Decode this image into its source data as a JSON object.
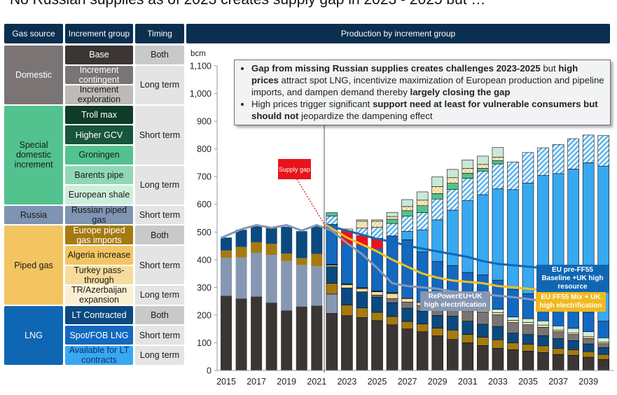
{
  "title": "No Russian supplies as of 2023 creates supply gap in 2023 - 2025 but …",
  "table": {
    "headers": {
      "gas_source": "Gas source",
      "increment_group": "Increment group",
      "timing": "Timing",
      "production": "Production by increment group"
    },
    "sources": [
      {
        "label": "Domestic",
        "color": "#7a7574",
        "text": "#ffffff"
      },
      {
        "label": "Special domestic increment",
        "color": "#52c28f",
        "text": "#1a1a1a"
      },
      {
        "label": "Russia",
        "color": "#7f94b2",
        "text": "#1a1a1a"
      },
      {
        "label": "Piped gas",
        "color": "#f2c561",
        "text": "#1a1a1a"
      },
      {
        "label": "LNG",
        "color": "#0f67b3",
        "text": "#ffffff"
      }
    ],
    "groups": [
      {
        "label": "Base",
        "color": "#3b3634",
        "text": "#ffffff"
      },
      {
        "label": "Increment contingent",
        "color": "#7a7574",
        "text": "#ffffff"
      },
      {
        "label": "Increment exploration",
        "color": "#bdbab8",
        "text": "#1a1a1a"
      },
      {
        "label": "Troll max",
        "color": "#0f3b2a",
        "text": "#ffffff"
      },
      {
        "label": "Higher GCV",
        "color": "#17563c",
        "text": "#ffffff"
      },
      {
        "label": "Groningen",
        "color": "#52c28f",
        "text": "#1a1a1a"
      },
      {
        "label": "Barents pipe",
        "color": "#8fd8b5",
        "text": "#1a1a1a"
      },
      {
        "label": "European shale",
        "color": "#cdeedd",
        "text": "#1a1a1a"
      },
      {
        "label": "Russian piped gas",
        "color": "#7f94b2",
        "text": "#1a1a1a"
      },
      {
        "label": "Europe piped gas imports",
        "color": "#a57a10",
        "text": "#ffffff"
      },
      {
        "label": "Algeria increase",
        "color": "#f2c561",
        "text": "#1a1a1a"
      },
      {
        "label": "Turkey pass-through",
        "color": "#f5dc9c",
        "text": "#1a1a1a"
      },
      {
        "label": "TR/Azerbaijan expansion",
        "color": "#fbefd2",
        "text": "#1a1a1a"
      },
      {
        "label": "LT Contracted",
        "color": "#0b4a80",
        "text": "#ffffff"
      },
      {
        "label": "Spot/FOB LNG",
        "color": "#1368c0",
        "text": "#ffffff"
      },
      {
        "label": "Available for LT contracts",
        "color": "#38a8f0",
        "text": "#0b2f6f"
      }
    ],
    "timings": [
      {
        "label": "Both",
        "color": "#c9c9c9"
      },
      {
        "label": "Long term",
        "color": "#e4e4e4"
      },
      {
        "label": "Short term",
        "color": "#e4e4e4"
      },
      {
        "label": "Long term",
        "color": "#e4e4e4"
      },
      {
        "label": "Short term",
        "color": "#e4e4e4"
      },
      {
        "label": "Both",
        "color": "#c9c9c9"
      },
      {
        "label": "Short term",
        "color": "#e4e4e4"
      },
      {
        "label": "Long term",
        "color": "#e4e4e4"
      },
      {
        "label": "Both",
        "color": "#c9c9c9"
      },
      {
        "label": "Short term",
        "color": "#e4e4e4"
      },
      {
        "label": "Long term",
        "color": "#e4e4e4"
      }
    ]
  },
  "callout": {
    "b1_bold1": "Gap from missing Russian supplies creates challenges 2023-2025",
    "b1_t1": " but ",
    "b1_bold2": "high prices",
    "b1_t2": " attract spot LNG, incentivize maximization of European production and pipeline imports, and dampen demand thereby ",
    "b1_bold3": "largely closing the gap",
    "b2_t1": "High prices trigger significant ",
    "b2_bold1": "support need at least for vulnerable consumers but should not",
    "b2_t2": " jeopardize the dampening effect"
  },
  "annotations": {
    "supply_gap": "Supply gap",
    "baseline": "EU pre-FF55 Baseline +UK high resource",
    "repower": "RePowerEU+UK high electrification",
    "ff55": "EU FF55 Mix + UK high electrification"
  },
  "chart_data": {
    "type": "bar",
    "stacked": true,
    "title": "Production by increment group",
    "ylabel": "bcm",
    "ylim": [
      0,
      1100
    ],
    "yticks": [
      0,
      100,
      200,
      300,
      400,
      500,
      600,
      700,
      800,
      900,
      1000,
      1100
    ],
    "ytick_labels": [
      "0",
      "100",
      "200",
      "300",
      "400",
      "500",
      "600",
      "700",
      "800",
      "900",
      "1,000",
      "1,100"
    ],
    "categories": [
      "2015",
      "2016",
      "2017",
      "2018",
      "2019",
      "2020",
      "2021",
      "2022",
      "2023",
      "2024",
      "2025",
      "2026",
      "2027",
      "2028",
      "2029",
      "2030",
      "2031",
      "2032",
      "2033",
      "2034",
      "2035",
      "2036",
      "2037",
      "2038",
      "2039",
      "2040"
    ],
    "xtick_labels": [
      "2015",
      "2017",
      "2019",
      "2021",
      "2023",
      "2025",
      "2027",
      "2029",
      "2031",
      "2033",
      "2035",
      "2037",
      "2039"
    ],
    "series": [
      {
        "name": "Base",
        "color": "#3b3634",
        "values": [
          270,
          260,
          267,
          245,
          217,
          231,
          234,
          206,
          198,
          191,
          180,
          165,
          150,
          140,
          125,
          112,
          100,
          90,
          80,
          75,
          70,
          65,
          58,
          55,
          48,
          40
        ]
      },
      {
        "name": "Russian piped gas",
        "color": "#8597b2",
        "values": [
          137,
          148,
          158,
          172,
          178,
          150,
          142,
          70,
          0,
          0,
          0,
          0,
          0,
          0,
          0,
          0,
          0,
          0,
          0,
          0,
          0,
          0,
          0,
          0,
          0,
          0
        ]
      },
      {
        "name": "Europe piped gas imports",
        "color": "#a57a10",
        "values": [
          26,
          38,
          38,
          40,
          27,
          25,
          45,
          39,
          38,
          35,
          30,
          30,
          27,
          28,
          28,
          34,
          30,
          30,
          31,
          25,
          25,
          24,
          22,
          20,
          20,
          18
        ]
      },
      {
        "name": "LT Contracted",
        "color": "#0b4a80",
        "values": [
          47,
          62,
          58,
          58,
          97,
          97,
          100,
          60,
          62,
          58,
          55,
          50,
          48,
          47,
          46,
          50,
          48,
          47,
          48,
          35,
          35,
          37,
          35,
          33,
          28,
          25
        ]
      },
      {
        "name": "Increment contingent",
        "color": "#7a7574",
        "values": [
          0,
          0,
          0,
          0,
          0,
          0,
          0,
          0,
          0,
          0,
          7,
          15,
          22,
          20,
          22,
          30,
          35,
          45,
          42,
          38,
          35,
          30,
          25,
          22,
          20,
          14
        ]
      },
      {
        "name": "TR/Azerbaijan expansion",
        "color": "#f5dc9c",
        "values": [
          0,
          0,
          0,
          0,
          0,
          0,
          0,
          5,
          12,
          12,
          12,
          18,
          12,
          10,
          8,
          8,
          8,
          8,
          8,
          8,
          8,
          8,
          6,
          6,
          6,
          6
        ]
      },
      {
        "name": "Groningen",
        "color": "#0f3b2a",
        "values": [
          0,
          0,
          0,
          0,
          0,
          0,
          0,
          3,
          3,
          3,
          3,
          3,
          0,
          0,
          0,
          0,
          0,
          0,
          0,
          0,
          0,
          0,
          0,
          0,
          0,
          0
        ]
      },
      {
        "name": "European shale",
        "color": "#cdeedd",
        "values": [
          0,
          0,
          0,
          0,
          0,
          0,
          0,
          0,
          0,
          0,
          0,
          0,
          3,
          3,
          5,
          5,
          8,
          10,
          12,
          12,
          14,
          15,
          15,
          16,
          18,
          15
        ]
      },
      {
        "name": "Spot/FOB LNG",
        "color": "#1368c0",
        "values": [
          0,
          0,
          0,
          0,
          0,
          0,
          0,
          145,
          155,
          180,
          190,
          205,
          210,
          180,
          160,
          140,
          125,
          115,
          105,
          100,
          90,
          85,
          80,
          75,
          70,
          60
        ]
      },
      {
        "name": "Available for LT contracts",
        "color": "#38a8f0",
        "values": [
          0,
          0,
          0,
          0,
          0,
          0,
          0,
          0,
          0,
          0,
          0,
          0,
          30,
          80,
          150,
          200,
          260,
          290,
          330,
          360,
          400,
          440,
          470,
          500,
          540,
          560
        ]
      },
      {
        "name": "Spot LNG (hatched)",
        "color": "#7fc4f0",
        "values": [
          0,
          0,
          0,
          0,
          0,
          0,
          0,
          30,
          35,
          35,
          40,
          45,
          55,
          62,
          75,
          75,
          80,
          85,
          90,
          100,
          110,
          100,
          105,
          110,
          100,
          110
        ]
      },
      {
        "name": "Groningen (green)",
        "color": "#52c28f",
        "values": [
          0,
          0,
          0,
          0,
          0,
          0,
          0,
          12,
          0,
          0,
          0,
          15,
          20,
          25,
          20,
          22,
          18,
          10,
          12,
          0,
          0,
          0,
          0,
          0,
          0,
          0
        ]
      },
      {
        "name": "Algeria increase",
        "color": "#f2e1a8",
        "values": [
          0,
          0,
          0,
          0,
          0,
          0,
          0,
          0,
          8,
          25,
          22,
          10,
          15,
          20,
          25,
          20,
          18,
          14,
          12,
          0,
          0,
          0,
          0,
          0,
          0,
          0
        ]
      },
      {
        "name": "Barents pipe",
        "color": "#c9e8d7",
        "values": [
          0,
          0,
          0,
          0,
          0,
          0,
          0,
          0,
          0,
          5,
          5,
          15,
          25,
          30,
          35,
          30,
          30,
          30,
          35,
          0,
          0,
          0,
          0,
          0,
          0,
          0
        ]
      }
    ],
    "demand_lines": [
      {
        "name": "EU pre-FF55 Baseline +UK high resource",
        "color": "#0f67b3",
        "values": [
          null,
          null,
          null,
          null,
          null,
          null,
          null,
          525,
          505,
          490,
          475,
          465,
          450,
          440,
          430,
          420,
          410,
          395,
          385,
          380,
          375,
          370,
          360,
          355,
          348,
          342
        ]
      },
      {
        "name": "EU FF55 Mix + UK high electrification",
        "color": "#f2c021",
        "values": [
          null,
          null,
          null,
          null,
          null,
          null,
          null,
          525,
          480,
          455,
          430,
          400,
          375,
          350,
          335,
          325,
          320,
          315,
          305,
          300,
          295,
          290,
          285,
          280,
          275,
          270
        ]
      },
      {
        "name": "RePowerEU+UK high electrification",
        "color": "#8597b2",
        "values": [
          478,
          510,
          525,
          515,
          525,
          505,
          525,
          505,
          460,
          420,
          370,
          315,
          305,
          300,
          295,
          285,
          280,
          275,
          270,
          265,
          258,
          250,
          245,
          240,
          235,
          225
        ]
      }
    ]
  }
}
